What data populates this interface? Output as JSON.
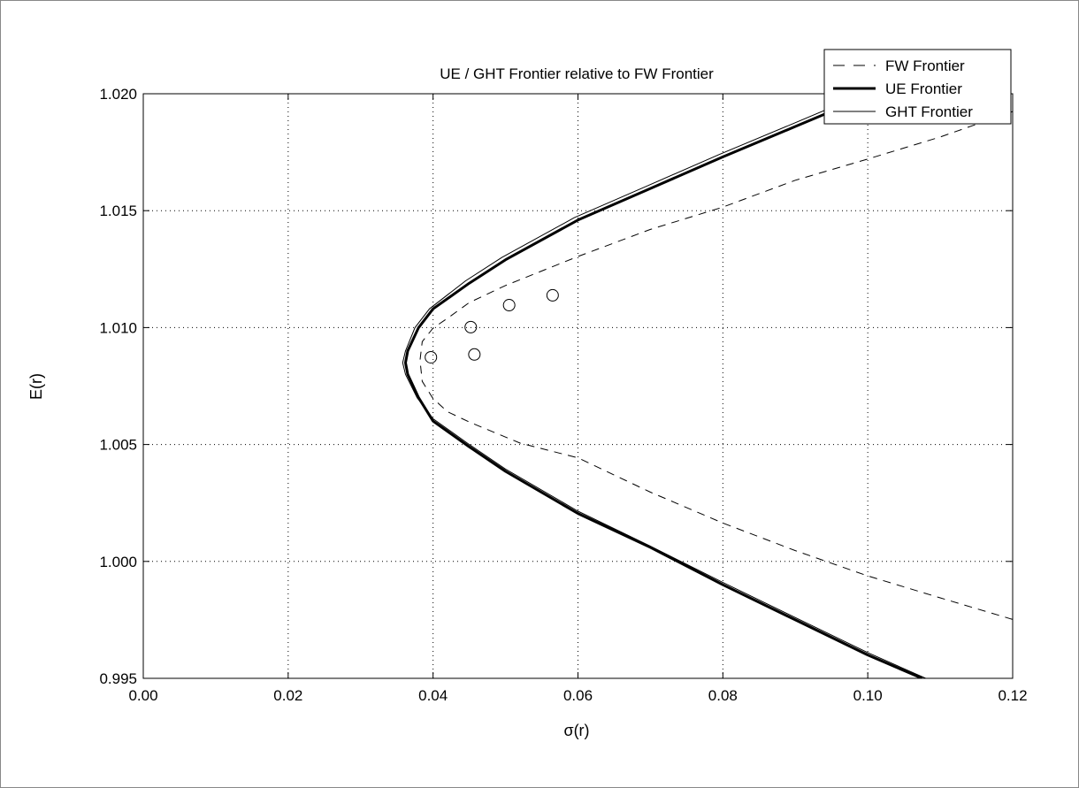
{
  "chart_data": {
    "type": "line",
    "title": "UE / GHT Frontier relative to FW Frontier",
    "xlabel": "σ(r)",
    "ylabel": "E(r)",
    "xlim": [
      0.0,
      0.12
    ],
    "ylim": [
      0.995,
      1.02
    ],
    "x_ticks": [
      "0.00",
      "0.02",
      "0.04",
      "0.06",
      "0.08",
      "0.10",
      "0.12"
    ],
    "y_ticks": [
      "0.995",
      "1.000",
      "1.005",
      "1.010",
      "1.015",
      "1.020"
    ],
    "grid": true,
    "legend_position": "top-right",
    "series": [
      {
        "name": "FW Frontier",
        "style": "dashed",
        "color": "#000000",
        "points": [
          [
            0.12,
            0.99752
          ],
          [
            0.11,
            0.99844
          ],
          [
            0.1,
            0.99938
          ],
          [
            0.09,
            1.00046
          ],
          [
            0.08,
            1.00164
          ],
          [
            0.07,
            1.00296
          ],
          [
            0.06,
            1.00443
          ],
          [
            0.052,
            1.00506
          ],
          [
            0.045,
            1.00596
          ],
          [
            0.042,
            1.0064
          ],
          [
            0.04,
            1.00696
          ],
          [
            0.0385,
            1.0077
          ],
          [
            0.0382,
            1.0086
          ],
          [
            0.0385,
            1.0094
          ],
          [
            0.04,
            1.00998
          ],
          [
            0.042,
            1.0104
          ],
          [
            0.045,
            1.01107
          ],
          [
            0.05,
            1.0118
          ],
          [
            0.06,
            1.01304
          ],
          [
            0.07,
            1.0142
          ],
          [
            0.08,
            1.01515
          ],
          [
            0.09,
            1.0163
          ],
          [
            0.1,
            1.01721
          ],
          [
            0.11,
            1.01815
          ],
          [
            0.12,
            1.01924
          ]
        ]
      },
      {
        "name": "UE Frontier",
        "style": "solid-thick",
        "color": "#000000",
        "points": [
          [
            0.1075,
            0.995
          ],
          [
            0.1,
            0.996
          ],
          [
            0.09,
            0.9975
          ],
          [
            0.08,
            0.999
          ],
          [
            0.07,
            1.0006
          ],
          [
            0.06,
            1.00205
          ],
          [
            0.05,
            1.00385
          ],
          [
            0.045,
            1.0049
          ],
          [
            0.04,
            1.006
          ],
          [
            0.038,
            1.007
          ],
          [
            0.0365,
            1.008
          ],
          [
            0.0362,
            1.0085
          ],
          [
            0.0365,
            1.009
          ],
          [
            0.038,
            1.01
          ],
          [
            0.04,
            1.0108
          ],
          [
            0.045,
            1.0119
          ],
          [
            0.05,
            1.0129
          ],
          [
            0.06,
            1.0146
          ],
          [
            0.07,
            1.01595
          ],
          [
            0.08,
            1.0173
          ],
          [
            0.09,
            1.0186
          ],
          [
            0.1,
            1.0199
          ],
          [
            0.103,
            1.0202
          ]
        ]
      },
      {
        "name": "GHT Frontier",
        "style": "solid-thin",
        "color": "#000000",
        "points": [
          [
            0.108,
            0.995
          ],
          [
            0.1,
            0.9961
          ],
          [
            0.09,
            0.9976
          ],
          [
            0.08,
            0.9991
          ],
          [
            0.07,
            1.00065
          ],
          [
            0.06,
            1.00215
          ],
          [
            0.05,
            1.00395
          ],
          [
            0.045,
            1.005
          ],
          [
            0.04,
            1.0061
          ],
          [
            0.0378,
            1.007
          ],
          [
            0.0362,
            1.008
          ],
          [
            0.0358,
            1.0085
          ],
          [
            0.0362,
            1.009
          ],
          [
            0.0375,
            1.01
          ],
          [
            0.0395,
            1.0108
          ],
          [
            0.0445,
            1.012
          ],
          [
            0.0495,
            1.013
          ],
          [
            0.0595,
            1.0147
          ],
          [
            0.0695,
            1.01605
          ],
          [
            0.0795,
            1.0174
          ],
          [
            0.0895,
            1.0187
          ],
          [
            0.0995,
            1.02
          ],
          [
            0.102,
            1.0203
          ]
        ]
      },
      {
        "style": "markers-circle",
        "color": "#000000",
        "points": [
          [
            0.0397,
            1.00873
          ],
          [
            0.0452,
            1.01002
          ],
          [
            0.0457,
            1.00885
          ],
          [
            0.0505,
            1.01096
          ],
          [
            0.0565,
            1.01138
          ]
        ]
      }
    ]
  }
}
